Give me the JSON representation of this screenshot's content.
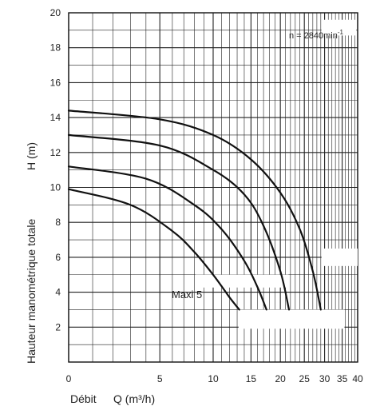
{
  "chart_data": {
    "type": "line",
    "xlabel_prefix": "Débit",
    "xlabel": "Q (m³/h)",
    "ylabel": "Hauteur manométrique totale",
    "ylabel_unit": "H (m)",
    "speed_note": "n = 2840min",
    "speed_note_exp": "-1",
    "curve_label": "Maxi 5",
    "xlim": [
      0,
      40
    ],
    "ylim": [
      0,
      20
    ],
    "x_scale": "log(x+5)",
    "x_ticks": [
      0,
      5,
      10,
      15,
      20,
      25,
      30,
      35,
      40
    ],
    "y_ticks": [
      2,
      4,
      6,
      8,
      10,
      12,
      14,
      16,
      18,
      20
    ],
    "grid": true,
    "series": [
      {
        "x": [
          0,
          3,
          6,
          8,
          10,
          12,
          13.3
        ],
        "y": [
          9.9,
          9.0,
          7.5,
          6.3,
          5.0,
          3.7,
          3.0
        ]
      },
      {
        "x": [
          0,
          4,
          8,
          11,
          14,
          16,
          17.5
        ],
        "y": [
          11.2,
          10.5,
          9.0,
          7.6,
          5.8,
          4.3,
          3.0
        ]
      },
      {
        "x": [
          0,
          5,
          10,
          14,
          17,
          20,
          21.7
        ],
        "y": [
          13.0,
          12.4,
          11.0,
          9.6,
          7.8,
          5.2,
          3.0
        ]
      },
      {
        "x": [
          0,
          5,
          10,
          15,
          20,
          24,
          27,
          29
        ],
        "y": [
          14.4,
          13.9,
          13.0,
          11.6,
          9.7,
          7.6,
          5.2,
          3.0
        ]
      }
    ]
  }
}
